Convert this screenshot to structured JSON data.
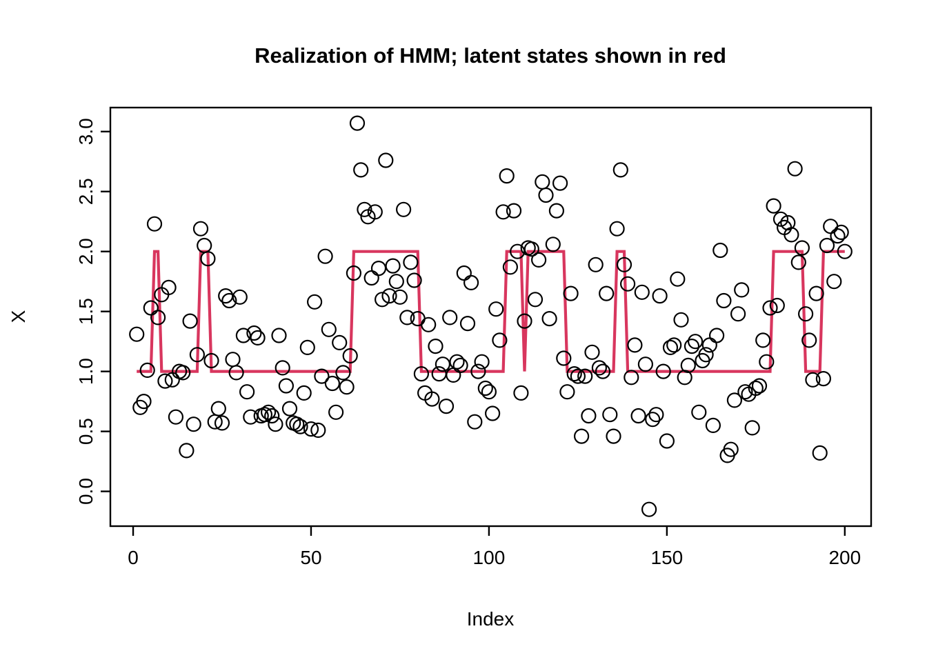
{
  "title": "Realization of HMM; latent states shown in red",
  "chart_data": {
    "type": "scatter",
    "title": "Realization of HMM; latent states shown in red",
    "xlabel": "Index",
    "ylabel": "X",
    "x_tick_labels": [
      "0",
      "50",
      "100",
      "150",
      "200"
    ],
    "x_tick_values": [
      0,
      50,
      100,
      150,
      200
    ],
    "y_tick_labels": [
      "0.0",
      "0.5",
      "1.0",
      "1.5",
      "2.0",
      "2.5",
      "3.0"
    ],
    "y_tick_values": [
      0.0,
      0.5,
      1.0,
      1.5,
      2.0,
      2.5,
      3.0
    ],
    "xlim": [
      -6.4,
      207.4
    ],
    "ylim": [
      -0.29,
      3.2
    ],
    "grid": false,
    "legend": "none",
    "point_style": {
      "shape": "open-circle",
      "color": "#000000"
    },
    "line_style": {
      "color": "#d8365e",
      "width": 4.2
    },
    "x_description": "Index 1..200 (x = i for i-th element of each series)",
    "series": [
      {
        "name": "observations",
        "render": "points",
        "y": [
          1.31,
          0.7,
          0.75,
          1.01,
          1.53,
          2.23,
          1.45,
          1.64,
          0.92,
          1.7,
          0.93,
          0.62,
          1.0,
          0.99,
          0.34,
          1.42,
          0.56,
          1.14,
          2.19,
          2.05,
          1.94,
          1.09,
          0.58,
          0.69,
          0.57,
          1.63,
          1.59,
          1.1,
          0.99,
          1.62,
          1.3,
          0.83,
          0.62,
          1.32,
          1.28,
          0.63,
          0.64,
          0.66,
          0.63,
          0.56,
          1.3,
          1.03,
          0.88,
          0.69,
          0.57,
          0.56,
          0.54,
          0.82,
          1.2,
          0.52,
          1.58,
          0.51,
          0.96,
          1.96,
          1.35,
          0.9,
          0.66,
          1.24,
          0.99,
          0.87,
          1.13,
          1.82,
          3.07,
          2.68,
          2.35,
          2.29,
          1.78,
          2.33,
          1.86,
          1.6,
          2.76,
          1.63,
          1.88,
          1.75,
          1.62,
          2.35,
          1.45,
          1.91,
          1.76,
          1.44,
          0.98,
          0.82,
          1.39,
          0.77,
          1.21,
          0.98,
          1.06,
          0.71,
          1.45,
          0.97,
          1.08,
          1.05,
          1.82,
          1.4,
          1.74,
          0.58,
          1.0,
          1.08,
          0.86,
          0.83,
          0.65,
          1.52,
          1.26,
          2.33,
          2.63,
          1.87,
          2.34,
          2.0,
          0.82,
          1.42,
          2.03,
          2.02,
          1.6,
          1.93,
          2.58,
          2.47,
          1.44,
          2.06,
          2.34,
          2.57,
          1.11,
          0.83,
          1.65,
          0.98,
          0.96,
          0.46,
          0.96,
          0.63,
          1.16,
          1.89,
          1.03,
          1.0,
          1.65,
          0.64,
          0.46,
          2.19,
          2.68,
          1.89,
          1.73,
          0.95,
          1.22,
          0.63,
          1.66,
          1.06,
          -0.15,
          0.6,
          0.64,
          1.63,
          1.0,
          0.42,
          1.2,
          1.22,
          1.77,
          1.43,
          0.95,
          1.05,
          1.21,
          1.25,
          0.66,
          1.09,
          1.14,
          1.22,
          0.55,
          1.3,
          2.01,
          1.59,
          0.3,
          0.35,
          0.76,
          1.48,
          1.68,
          0.83,
          0.81,
          0.53,
          0.86,
          0.88,
          1.26,
          1.08,
          1.53,
          2.38,
          1.55,
          2.27,
          2.2,
          2.24,
          2.14,
          2.69,
          1.91,
          2.03,
          1.48,
          1.26,
          0.93,
          1.65,
          0.32,
          0.94,
          2.05,
          2.21,
          1.75,
          2.13,
          2.16,
          2.0
        ]
      },
      {
        "name": "latent states",
        "render": "line",
        "y": [
          1,
          1,
          1,
          1,
          1,
          2,
          2,
          1,
          1,
          1,
          1,
          1,
          1,
          1,
          1,
          1,
          1,
          1,
          2,
          2,
          2,
          1,
          1,
          1,
          1,
          1,
          1,
          1,
          1,
          1,
          1,
          1,
          1,
          1,
          1,
          1,
          1,
          1,
          1,
          1,
          1,
          1,
          1,
          1,
          1,
          1,
          1,
          1,
          1,
          1,
          1,
          1,
          1,
          1,
          1,
          1,
          1,
          1,
          1,
          1,
          1,
          2,
          2,
          2,
          2,
          2,
          2,
          2,
          2,
          2,
          2,
          2,
          2,
          2,
          2,
          2,
          2,
          2,
          2,
          2,
          1,
          1,
          1,
          1,
          1,
          1,
          1,
          1,
          1,
          1,
          1,
          1,
          1,
          1,
          1,
          1,
          1,
          1,
          1,
          1,
          1,
          1,
          1,
          1,
          2,
          2,
          2,
          2,
          2,
          1,
          2,
          2,
          2,
          2,
          2,
          2,
          2,
          2,
          2,
          2,
          2,
          1,
          1,
          1,
          1,
          1,
          1,
          1,
          1,
          1,
          1,
          1,
          1,
          1,
          1,
          2,
          2,
          2,
          1,
          1,
          1,
          1,
          1,
          1,
          1,
          1,
          1,
          1,
          1,
          1,
          1,
          1,
          1,
          1,
          1,
          1,
          1,
          1,
          1,
          1,
          1,
          1,
          1,
          1,
          1,
          1,
          1,
          1,
          1,
          1,
          1,
          1,
          1,
          1,
          1,
          1,
          1,
          1,
          1,
          2,
          2,
          2,
          2,
          2,
          2,
          2,
          2,
          2,
          1,
          1,
          1,
          1,
          1,
          2,
          2,
          2,
          2,
          2,
          2,
          2
        ]
      }
    ]
  }
}
